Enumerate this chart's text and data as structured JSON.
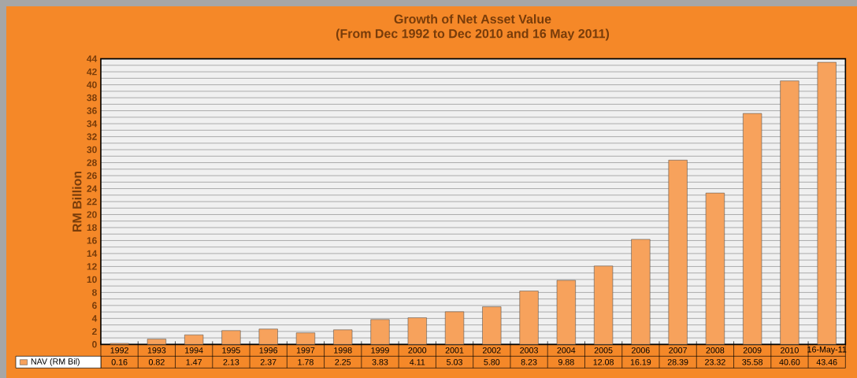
{
  "chart_data": {
    "type": "bar",
    "title": "Growth of Net Asset Value",
    "subtitle": "(From Dec 1992 to Dec 2010 and 16 May 2011)",
    "ylabel": "RM Billion",
    "categories": [
      "1992",
      "1993",
      "1994",
      "1995",
      "1996",
      "1997",
      "1998",
      "1999",
      "2000",
      "2001",
      "2002",
      "2003",
      "2004",
      "2005",
      "2006",
      "2007",
      "2008",
      "2009",
      "2010",
      "16-May-11"
    ],
    "series": [
      {
        "name": "NAV (RM Bil)",
        "color": "#f7a25c",
        "values": [
          0.16,
          0.82,
          1.47,
          2.13,
          2.37,
          1.78,
          2.25,
          3.83,
          4.11,
          5.03,
          5.8,
          8.23,
          9.88,
          12.08,
          16.19,
          28.39,
          23.32,
          35.58,
          40.6,
          43.46
        ],
        "value_labels": [
          "0.16",
          "0.82",
          "1.47",
          "2.13",
          "2.37",
          "1.78",
          "2.25",
          "3.83",
          "4.11",
          "5.03",
          "5.80",
          "8.23",
          "9.88",
          "12.08",
          "16.19",
          "28.39",
          "23.32",
          "35.58",
          "40.60",
          "43.46"
        ]
      }
    ],
    "ylim": [
      0,
      44
    ],
    "yticks": [
      0,
      {
        "value": 1,
        "label": null
      },
      2,
      {
        "value": 3,
        "label": null
      },
      4,
      {
        "value": 5,
        "label": null
      },
      6,
      {
        "value": 7,
        "label": null
      },
      8,
      {
        "value": 9,
        "label": null
      },
      10,
      {
        "value": 11,
        "label": null
      },
      12,
      {
        "value": 13,
        "label": null
      },
      14,
      {
        "value": 15,
        "label": null
      },
      16,
      {
        "value": 17,
        "label": null
      },
      18,
      {
        "value": 19,
        "label": null
      },
      20,
      {
        "value": 21,
        "label": null
      },
      22,
      {
        "value": 23,
        "label": null
      },
      24,
      {
        "value": 25,
        "label": null
      },
      26,
      {
        "value": 27,
        "label": null
      },
      28,
      {
        "value": 29,
        "label": null
      },
      30,
      {
        "value": 31,
        "label": null
      },
      32,
      {
        "value": 33,
        "label": null
      },
      34,
      {
        "value": 35,
        "label": null
      },
      36,
      {
        "value": 37,
        "label": null
      },
      38,
      {
        "value": 39,
        "label": null
      },
      40,
      {
        "value": 41,
        "label": null
      },
      42,
      {
        "value": 43,
        "label": null
      },
      44
    ],
    "grid": "y",
    "legend": "bottom"
  }
}
